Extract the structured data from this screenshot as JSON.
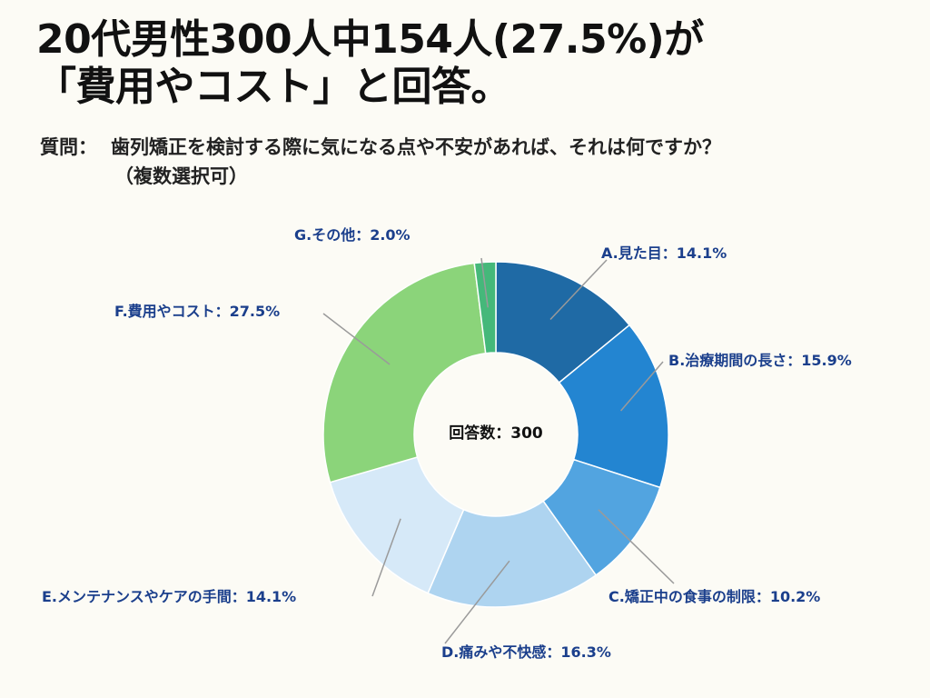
{
  "header": {
    "title_line1": "20代男性300人中154人(27.5%)が",
    "title_line2": "「費用やコスト」と回答。"
  },
  "question": {
    "label": "質問：",
    "text": "歯列矯正を検討する際に気になる点や不安があれば、それは何ですか？",
    "note": "（複数選択可）"
  },
  "chart_data": {
    "type": "pie",
    "style": "donut",
    "center_label": "回答数：300",
    "total_responses": 300,
    "categories": [
      "A.見た目",
      "B.治療期間の長さ",
      "C.矯正中の食事の制限",
      "D.痛みや不快感",
      "E.メンテナンスやケアの手間",
      "F.費用やコスト",
      "G.その他"
    ],
    "values": [
      14.1,
      15.9,
      10.2,
      16.3,
      14.1,
      27.5,
      2.0
    ],
    "unit": "%",
    "labels": [
      "A.見た目：14.1%",
      "B.治療期間の長さ：15.9%",
      "C.矯正中の食事の制限：10.2%",
      "D.痛みや不快感：16.3%",
      "E.メンテナンスやケアの手間：14.1%",
      "F.費用やコスト：27.5%",
      "G.その他：2.0%"
    ],
    "colors": [
      "#1f6aa5",
      "#2385d1",
      "#52a4e0",
      "#aed4f0",
      "#d6e9f8",
      "#8bd47a",
      "#45b87a"
    ],
    "start_angle": "top (12 o'clock)",
    "direction": "clockwise"
  }
}
